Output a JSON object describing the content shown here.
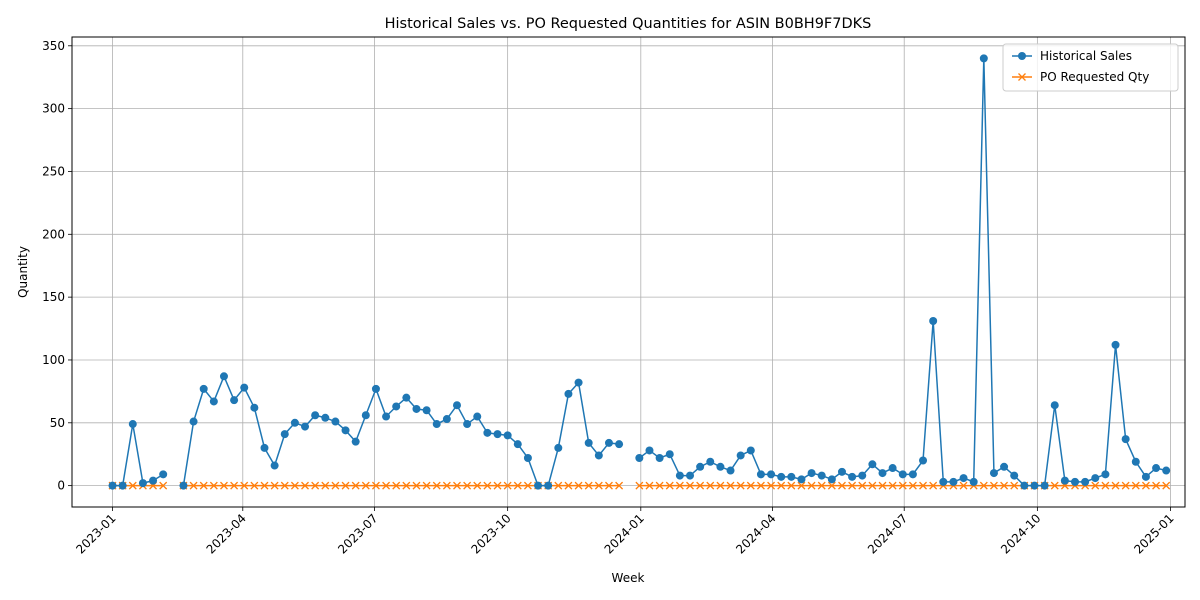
{
  "chart_data": {
    "type": "line",
    "title": "Historical Sales vs. PO Requested Quantities for ASIN B0BH9F7DKS",
    "xlabel": "Week",
    "ylabel": "Quantity",
    "xlim": [
      "2022-12-04",
      "2025-01-11"
    ],
    "ylim": [
      -17,
      357
    ],
    "grid": true,
    "legend_position": "top-right",
    "x_ticks": [
      "2023-01",
      "2023-04",
      "2023-07",
      "2023-10",
      "2024-01",
      "2024-04",
      "2024-07",
      "2024-10",
      "2025-01"
    ],
    "y_ticks": [
      0,
      50,
      100,
      150,
      200,
      250,
      300,
      350
    ],
    "colors": {
      "sales": "#1f77b4",
      "po": "#ff7f0e",
      "grid": "#b0b0b0"
    },
    "series": [
      {
        "name": "Historical Sales",
        "marker": "circle",
        "x": [
          "2023-01-01",
          "2023-01-08",
          "2023-01-15",
          "2023-01-22",
          "2023-01-29",
          "2023-02-05",
          "2023-02-19",
          "2023-02-26",
          "2023-03-05",
          "2023-03-12",
          "2023-03-19",
          "2023-03-26",
          "2023-04-02",
          "2023-04-09",
          "2023-04-16",
          "2023-04-23",
          "2023-04-30",
          "2023-05-07",
          "2023-05-14",
          "2023-05-21",
          "2023-05-28",
          "2023-06-04",
          "2023-06-11",
          "2023-06-18",
          "2023-06-25",
          "2023-07-02",
          "2023-07-09",
          "2023-07-16",
          "2023-07-23",
          "2023-07-30",
          "2023-08-06",
          "2023-08-13",
          "2023-08-20",
          "2023-08-27",
          "2023-09-03",
          "2023-09-10",
          "2023-09-17",
          "2023-09-24",
          "2023-10-01",
          "2023-10-08",
          "2023-10-15",
          "2023-10-22",
          "2023-10-29",
          "2023-11-05",
          "2023-11-12",
          "2023-11-19",
          "2023-11-26",
          "2023-12-03",
          "2023-12-10",
          "2023-12-17",
          "2023-12-31",
          "2024-01-07",
          "2024-01-14",
          "2024-01-21",
          "2024-01-28",
          "2024-02-04",
          "2024-02-11",
          "2024-02-18",
          "2024-02-25",
          "2024-03-03",
          "2024-03-10",
          "2024-03-17",
          "2024-03-24",
          "2024-03-31",
          "2024-04-07",
          "2024-04-14",
          "2024-04-21",
          "2024-04-28",
          "2024-05-05",
          "2024-05-12",
          "2024-05-19",
          "2024-05-26",
          "2024-06-02",
          "2024-06-09",
          "2024-06-16",
          "2024-06-23",
          "2024-06-30",
          "2024-07-07",
          "2024-07-14",
          "2024-07-21",
          "2024-07-28",
          "2024-08-04",
          "2024-08-11",
          "2024-08-18",
          "2024-08-25",
          "2024-09-01",
          "2024-09-08",
          "2024-09-15",
          "2024-09-22",
          "2024-09-29",
          "2024-10-06",
          "2024-10-13",
          "2024-10-20",
          "2024-10-27",
          "2024-11-03",
          "2024-11-10",
          "2024-11-17",
          "2024-11-24",
          "2024-12-01",
          "2024-12-08",
          "2024-12-15",
          "2024-12-22",
          "2024-12-29"
        ],
        "values": [
          0,
          0,
          49,
          2,
          4,
          9,
          0,
          51,
          77,
          67,
          87,
          68,
          78,
          62,
          30,
          16,
          41,
          50,
          47,
          56,
          54,
          51,
          44,
          35,
          56,
          77,
          55,
          63,
          70,
          61,
          60,
          49,
          53,
          64,
          49,
          55,
          42,
          41,
          40,
          33,
          22,
          0,
          0,
          30,
          73,
          82,
          34,
          24,
          34,
          33,
          22,
          28,
          22,
          25,
          8,
          8,
          15,
          19,
          15,
          12,
          24,
          28,
          9,
          9,
          7,
          7,
          5,
          10,
          8,
          5,
          11,
          7,
          8,
          17,
          10,
          14,
          9,
          9,
          20,
          131,
          3,
          3,
          6,
          3,
          340,
          10,
          15,
          8,
          0,
          0,
          0,
          64,
          4,
          3,
          3,
          6,
          9,
          112,
          37,
          19,
          7,
          14,
          12
        ]
      },
      {
        "name": "PO Requested Qty",
        "marker": "x",
        "x": [
          "2023-01-01",
          "2023-01-08",
          "2023-01-15",
          "2023-01-22",
          "2023-01-29",
          "2023-02-05",
          "2023-02-19",
          "2023-02-26",
          "2023-03-05",
          "2023-03-12",
          "2023-03-19",
          "2023-03-26",
          "2023-04-02",
          "2023-04-09",
          "2023-04-16",
          "2023-04-23",
          "2023-04-30",
          "2023-05-07",
          "2023-05-14",
          "2023-05-21",
          "2023-05-28",
          "2023-06-04",
          "2023-06-11",
          "2023-06-18",
          "2023-06-25",
          "2023-07-02",
          "2023-07-09",
          "2023-07-16",
          "2023-07-23",
          "2023-07-30",
          "2023-08-06",
          "2023-08-13",
          "2023-08-20",
          "2023-08-27",
          "2023-09-03",
          "2023-09-10",
          "2023-09-17",
          "2023-09-24",
          "2023-10-01",
          "2023-10-08",
          "2023-10-15",
          "2023-10-22",
          "2023-10-29",
          "2023-11-05",
          "2023-11-12",
          "2023-11-19",
          "2023-11-26",
          "2023-12-03",
          "2023-12-10",
          "2023-12-17",
          "2023-12-31",
          "2024-01-07",
          "2024-01-14",
          "2024-01-21",
          "2024-01-28",
          "2024-02-04",
          "2024-02-11",
          "2024-02-18",
          "2024-02-25",
          "2024-03-03",
          "2024-03-10",
          "2024-03-17",
          "2024-03-24",
          "2024-03-31",
          "2024-04-07",
          "2024-04-14",
          "2024-04-21",
          "2024-04-28",
          "2024-05-05",
          "2024-05-12",
          "2024-05-19",
          "2024-05-26",
          "2024-06-02",
          "2024-06-09",
          "2024-06-16",
          "2024-06-23",
          "2024-06-30",
          "2024-07-07",
          "2024-07-14",
          "2024-07-21",
          "2024-07-28",
          "2024-08-04",
          "2024-08-11",
          "2024-08-18",
          "2024-08-25",
          "2024-09-01",
          "2024-09-08",
          "2024-09-15",
          "2024-09-22",
          "2024-09-29",
          "2024-10-06",
          "2024-10-13",
          "2024-10-20",
          "2024-10-27",
          "2024-11-03",
          "2024-11-10",
          "2024-11-17",
          "2024-11-24",
          "2024-12-01",
          "2024-12-08",
          "2024-12-15",
          "2024-12-22",
          "2024-12-29"
        ],
        "values": [
          0,
          0,
          0,
          0,
          0,
          0,
          0,
          0,
          0,
          0,
          0,
          0,
          0,
          0,
          0,
          0,
          0,
          0,
          0,
          0,
          0,
          0,
          0,
          0,
          0,
          0,
          0,
          0,
          0,
          0,
          0,
          0,
          0,
          0,
          0,
          0,
          0,
          0,
          0,
          0,
          0,
          0,
          0,
          0,
          0,
          0,
          0,
          0,
          0,
          0,
          0,
          0,
          0,
          0,
          0,
          0,
          0,
          0,
          0,
          0,
          0,
          0,
          0,
          0,
          0,
          0,
          0,
          0,
          0,
          0,
          0,
          0,
          0,
          0,
          0,
          0,
          0,
          0,
          0,
          0,
          0,
          0,
          0,
          0,
          0,
          0,
          0,
          0,
          0,
          0,
          0,
          0,
          0,
          0,
          0,
          0,
          0,
          0,
          0,
          0,
          0,
          0,
          0
        ]
      }
    ]
  }
}
